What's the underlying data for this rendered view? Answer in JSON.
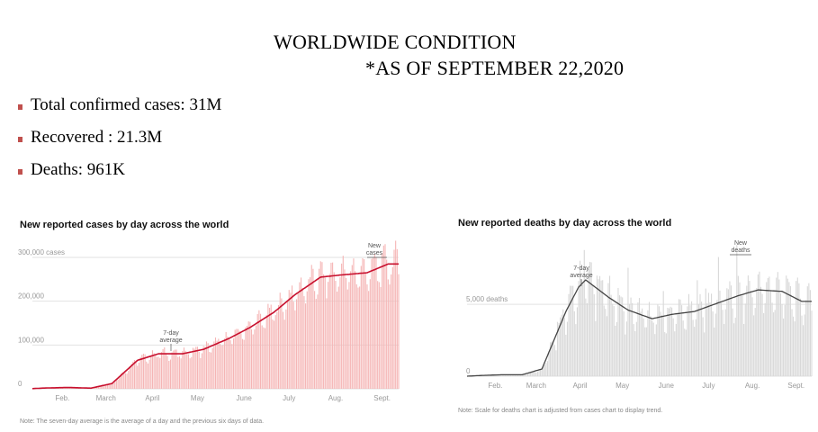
{
  "header": {
    "title_line1": "WORLDWIDE CONDITION",
    "title_line2": "*AS OF SEPTEMBER 22,2020"
  },
  "stats": [
    {
      "text": "Total confirmed cases: 31M"
    },
    {
      "text": "Recovered : 21.3M"
    },
    {
      "text": "Deaths: 961K"
    }
  ],
  "colors": {
    "cases_bar": "#f5b5b5",
    "cases_line": "#c8102e",
    "deaths_bar": "#d8d8d8",
    "deaths_line": "#444444",
    "bullet": "#c0504d"
  },
  "chart_data": [
    {
      "type": "bar",
      "title": "New reported cases by day across the world",
      "note": "Note: The seven-day average is the average of a day and the previous six days of data.",
      "x_tick_labels": [
        "Feb.",
        "March",
        "April",
        "May",
        "June",
        "July",
        "Aug.",
        "Sept."
      ],
      "y_tick_labels": [
        "0",
        "100,000",
        "200,000",
        "300,000 cases"
      ],
      "y_ticks": [
        0,
        100000,
        200000,
        300000
      ],
      "ylim": [
        0,
        300000
      ],
      "annotations": {
        "average": [
          "7-day",
          "average"
        ],
        "bars": [
          "New",
          "cases"
        ]
      },
      "series": [
        {
          "name": "7-day average",
          "x": [
            "Jan. 22",
            "Feb. 1",
            "Feb. 15",
            "March 1",
            "March 15",
            "April 1",
            "April 15",
            "May 1",
            "May 15",
            "June 1",
            "June 15",
            "July 1",
            "July 15",
            "Aug. 1",
            "Aug. 15",
            "Sept. 1",
            "Sept. 15",
            "Sept. 22"
          ],
          "values": [
            500,
            2000,
            3000,
            1500,
            12000,
            65000,
            80000,
            80000,
            90000,
            115000,
            140000,
            175000,
            215000,
            255000,
            260000,
            265000,
            285000,
            285000
          ]
        }
      ]
    },
    {
      "type": "bar",
      "title": "New reported deaths by day across the world",
      "note": "Note: Scale for deaths chart is adjusted from cases chart to display trend.",
      "x_tick_labels": [
        "Feb.",
        "March",
        "April",
        "May",
        "June",
        "July",
        "Aug.",
        "Sept."
      ],
      "y_tick_labels": [
        "0",
        "5,000 deaths"
      ],
      "y_ticks": [
        0,
        5000
      ],
      "ylim": [
        0,
        8200
      ],
      "annotations": {
        "average": [
          "7-day",
          "average"
        ],
        "bars": [
          "New",
          "deaths"
        ]
      },
      "series": [
        {
          "name": "7-day average",
          "x": [
            "Jan. 22",
            "Feb. 1",
            "Feb. 15",
            "March 1",
            "March 15",
            "April 1",
            "April 10",
            "April 15",
            "May 1",
            "May 15",
            "June 1",
            "June 15",
            "July 1",
            "July 15",
            "Aug. 1",
            "Aug. 15",
            "Sept. 1",
            "Sept. 15",
            "Sept. 22"
          ],
          "values": [
            0,
            50,
            100,
            100,
            500,
            4500,
            6200,
            6700,
            5500,
            4600,
            4000,
            4300,
            4500,
            5000,
            5600,
            6000,
            5900,
            5200,
            5200
          ]
        }
      ]
    }
  ]
}
